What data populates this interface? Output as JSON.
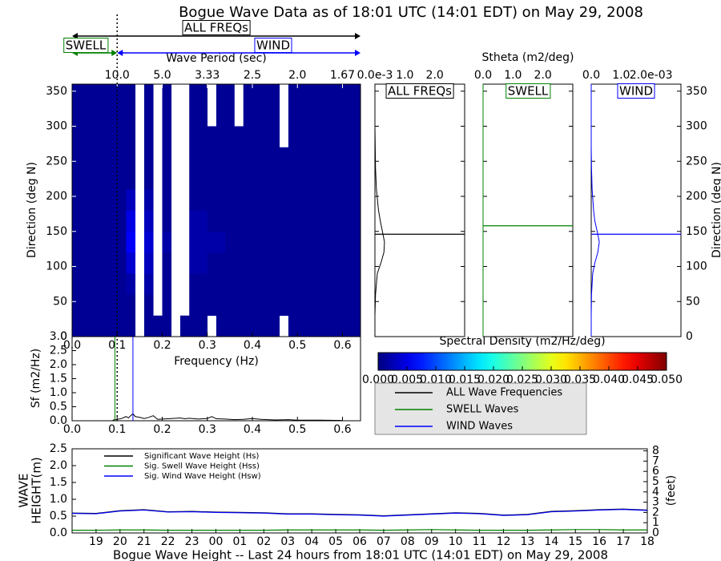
{
  "chart_data": [
    {
      "type": "heatmap",
      "title": "Bogue Wave Data as of 18:01 UTC (14:01 EDT) on May 29, 2008",
      "xlabel": "Frequency (Hz)",
      "ylabel": "Direction (deg N)",
      "x2label": "Wave Period (sec)",
      "annotations": {
        "all": "ALL FREQs",
        "swell": "SWELL",
        "wind": "WIND"
      },
      "xlim": [
        0,
        0.64
      ],
      "ylim": [
        0,
        360
      ],
      "xticks": [
        {
          "value": 0,
          "label": "0.0"
        },
        0.1,
        0.2,
        0.3,
        0.4,
        0.5,
        0.6
      ],
      "yticks": [
        0,
        50,
        100,
        150,
        200,
        250,
        300,
        350
      ],
      "x2ticks": [
        {
          "value": 0.1,
          "label": "10.0"
        },
        {
          "value": 0.2,
          "label": "5.0"
        },
        {
          "value": 0.3,
          "label": "3.33"
        },
        {
          "value": 0.4,
          "label": "2.5"
        },
        {
          "value": 0.5,
          "label": "2.0"
        },
        {
          "value": 0.6,
          "label": "1.67"
        }
      ],
      "freq_bins": [
        0,
        0.02,
        0.04,
        0.06,
        0.08,
        0.1,
        0.12,
        0.14,
        0.16,
        0.18,
        0.2,
        0.22,
        0.24,
        0.26,
        0.28,
        0.3,
        0.32,
        0.34,
        0.36,
        0.38,
        0.4,
        0.42,
        0.44,
        0.46,
        0.48,
        0.5,
        0.52,
        0.54,
        0.56,
        0.58,
        0.6,
        0.62,
        0.64
      ],
      "dir_bins": [
        0,
        30,
        60,
        90,
        120,
        150,
        180,
        210,
        240,
        270,
        300,
        330,
        360
      ],
      "values": [
        [
          0.001,
          0.001,
          0.001,
          0.001,
          0.001,
          0.001,
          0.001,
          null,
          0.001,
          0.001,
          0.001,
          null,
          0.001,
          0.001,
          0.001,
          null,
          0.001,
          0.001,
          0.001,
          0.001,
          0.001,
          0.001,
          0.001,
          null,
          0.001,
          0.001,
          0.001,
          0.001,
          0.001,
          0.001,
          0.001,
          0.001
        ],
        [
          0.001,
          0.001,
          0.001,
          0.001,
          0.001,
          0.001,
          0.001,
          null,
          0.001,
          null,
          0.001,
          null,
          null,
          0.001,
          0.001,
          0.001,
          0.001,
          0.001,
          0.001,
          0.001,
          0.001,
          0.001,
          0.001,
          0.001,
          0.001,
          0.001,
          0.001,
          0.001,
          0.001,
          0.001,
          0.001,
          0.001
        ],
        [
          0.001,
          0.001,
          0.001,
          0.001,
          0.001,
          0.001,
          0.002,
          null,
          0.002,
          null,
          0.001,
          null,
          null,
          0.001,
          0.001,
          0.001,
          0.001,
          0.001,
          0.001,
          0.001,
          0.001,
          0.001,
          0.001,
          0.001,
          0.001,
          0.001,
          0.001,
          0.001,
          0.001,
          0.001,
          0.001,
          0.001
        ],
        [
          0.001,
          0.001,
          0.001,
          0.001,
          0.001,
          0.001,
          0.004,
          null,
          0.003,
          null,
          0.001,
          null,
          null,
          0.002,
          0.002,
          0.001,
          0.001,
          0.001,
          0.001,
          0.001,
          0.001,
          0.001,
          0.001,
          0.001,
          0.001,
          0.001,
          0.001,
          0.001,
          0.001,
          0.001,
          0.001,
          0.001
        ],
        [
          0.001,
          0.001,
          0.001,
          0.001,
          0.001,
          0.001,
          0.006,
          null,
          0.004,
          null,
          0.002,
          null,
          null,
          0.002,
          0.002,
          0.002,
          0.002,
          0.001,
          0.001,
          0.001,
          0.001,
          0.001,
          0.001,
          0.001,
          0.001,
          0.001,
          0.001,
          0.001,
          0.001,
          0.001,
          0.001,
          0.001
        ],
        [
          0.001,
          0.001,
          0.001,
          0.001,
          0.001,
          0.001,
          0.005,
          null,
          0.003,
          null,
          0.001,
          null,
          null,
          0.002,
          0.002,
          0.001,
          0.001,
          0.001,
          0.001,
          0.001,
          0.001,
          0.001,
          0.001,
          0.001,
          0.001,
          0.001,
          0.001,
          0.001,
          0.001,
          0.001,
          0.001,
          0.001
        ],
        [
          0.001,
          0.001,
          0.001,
          0.001,
          0.001,
          0.001,
          0.003,
          null,
          0.002,
          null,
          0.001,
          null,
          null,
          0.001,
          0.001,
          0.001,
          0.001,
          0.001,
          0.001,
          0.001,
          0.001,
          0.001,
          0.001,
          0.001,
          0.001,
          0.001,
          0.001,
          0.001,
          0.001,
          0.001,
          0.001,
          0.001
        ],
        [
          0.001,
          0.001,
          0.001,
          0.001,
          0.001,
          0.001,
          0.001,
          null,
          0.001,
          null,
          0.001,
          null,
          null,
          0.001,
          0.001,
          0.001,
          0.001,
          0.001,
          0.001,
          0.001,
          0.001,
          0.001,
          0.001,
          0.001,
          0.001,
          0.001,
          0.001,
          0.001,
          0.001,
          0.001,
          0.001,
          0.001
        ],
        [
          0.001,
          0.001,
          0.001,
          0.001,
          0.001,
          0.001,
          0.001,
          null,
          0.001,
          null,
          0.001,
          null,
          null,
          0.001,
          0.001,
          0.001,
          0.001,
          0.001,
          0.001,
          0.001,
          0.001,
          0.001,
          0.001,
          0.001,
          0.001,
          0.001,
          0.001,
          0.001,
          0.001,
          0.001,
          0.001,
          0.001
        ],
        [
          0.001,
          0.001,
          0.001,
          0.001,
          0.001,
          0.001,
          0.001,
          null,
          0.001,
          null,
          0.001,
          null,
          null,
          0.001,
          0.001,
          0.001,
          0.001,
          0.001,
          0.001,
          0.001,
          0.001,
          0.001,
          0.001,
          null,
          0.001,
          0.001,
          0.001,
          0.001,
          0.001,
          0.001,
          0.001,
          0.001
        ],
        [
          0.001,
          0.001,
          0.001,
          0.001,
          0.001,
          0.001,
          0.001,
          null,
          0.001,
          null,
          0.001,
          null,
          null,
          0.001,
          0.001,
          null,
          0.001,
          0.001,
          null,
          0.001,
          0.001,
          0.001,
          0.001,
          null,
          0.001,
          0.001,
          0.001,
          0.001,
          0.001,
          0.001,
          0.001,
          0.001
        ],
        [
          0.001,
          0.001,
          0.001,
          0.001,
          0.001,
          0.001,
          0.001,
          null,
          0.001,
          null,
          0.001,
          null,
          null,
          0.001,
          0.001,
          null,
          0.001,
          0.001,
          null,
          0.001,
          0.001,
          0.001,
          0.001,
          null,
          0.001,
          0.001,
          0.001,
          0.001,
          0.001,
          0.001,
          0.001,
          0.001
        ]
      ],
      "colorbar": {
        "label": "Spectral Density (m2/Hz/deg)",
        "lim": [
          0,
          0.05
        ],
        "ticks": [
          {
            "value": 0,
            "label": "0.000"
          },
          {
            "value": 0.005,
            "label": "0.005"
          },
          {
            "value": 0.01,
            "label": "0.010"
          },
          {
            "value": 0.015,
            "label": "0.015"
          },
          {
            "value": 0.02,
            "label": "0.020"
          },
          {
            "value": 0.025,
            "label": "0.025"
          },
          {
            "value": 0.03,
            "label": "0.030"
          },
          {
            "value": 0.035,
            "label": "0.035"
          },
          {
            "value": 0.04,
            "label": "0.040"
          },
          {
            "value": 0.045,
            "label": "0.045"
          },
          {
            "value": 0.05,
            "label": "0.050"
          }
        ]
      }
    },
    {
      "type": "profile",
      "xlabel": "Stheta (m2/deg)",
      "ylabel": "Direction (deg N)",
      "ylim": [
        0,
        360
      ],
      "yticks": [
        0,
        50,
        100,
        150,
        200,
        250,
        300,
        350
      ],
      "directions": [
        0,
        30,
        60,
        90,
        105,
        120,
        135,
        150,
        165,
        180,
        210,
        240,
        270,
        300,
        330,
        360
      ],
      "panels": [
        {
          "name": "ALL FREQs",
          "color": "#000000",
          "xlim": [
            0,
            3.0
          ],
          "xticks": [
            {
              "value": 0,
              "label": "0.0e-3"
            },
            {
              "value": 1,
              "label": "1.0"
            },
            {
              "value": 2,
              "label": "2.0"
            }
          ],
          "values": [
            0,
            0,
            0.02,
            0.08,
            0.2,
            0.3,
            0.32,
            0.25,
            0.18,
            0.12,
            0.05,
            0.02,
            0.01,
            0,
            0,
            0
          ],
          "mean_direction": 146
        },
        {
          "name": "SWELL",
          "color": "#008000",
          "xlim": [
            0,
            3.0
          ],
          "xticks": [
            {
              "value": 0,
              "label": "0.0"
            },
            {
              "value": 1,
              "label": "1.0"
            },
            {
              "value": 2,
              "label": "2.0"
            }
          ],
          "values": [
            0,
            0,
            0,
            0,
            0,
            0,
            0,
            0,
            0,
            0,
            0,
            0,
            0,
            0,
            0,
            0
          ],
          "mean_direction": 158
        },
        {
          "name": "WIND",
          "color": "#0000ff",
          "xlim": [
            0,
            3.0
          ],
          "xticks": [
            {
              "value": 0,
              "label": "0.0"
            },
            {
              "value": 1,
              "label": "1.0"
            },
            {
              "value": 2,
              "label": "2.0e-03"
            }
          ],
          "values": [
            0,
            0,
            0.01,
            0.05,
            0.12,
            0.22,
            0.27,
            0.2,
            0.12,
            0.08,
            0.03,
            0.01,
            0,
            0,
            0,
            0
          ],
          "mean_direction": 146
        }
      ]
    },
    {
      "type": "line",
      "ylabel": "Sf (m2/Hz)",
      "xlim": [
        0,
        0.64
      ],
      "ylim": [
        0,
        3.0
      ],
      "xticks": [
        {
          "value": 0,
          "label": "0.0"
        },
        0.1,
        0.2,
        0.3,
        0.4,
        0.5,
        0.6
      ],
      "yticks": [
        {
          "value": 0,
          "label": "0.0"
        },
        0.5,
        {
          "value": 1,
          "label": "1.0"
        },
        1.5,
        {
          "value": 2,
          "label": "2.0"
        },
        2.5,
        {
          "value": 3,
          "label": "3.0"
        }
      ],
      "separation_frequency": 0.1,
      "x": [
        0.09,
        0.1,
        0.11,
        0.12,
        0.125,
        0.13,
        0.135,
        0.14,
        0.15,
        0.16,
        0.17,
        0.18,
        0.19,
        0.2,
        0.22,
        0.24,
        0.25,
        0.26,
        0.28,
        0.3,
        0.31,
        0.32,
        0.34,
        0.36,
        0.38,
        0.4,
        0.42,
        0.45,
        0.48,
        0.5,
        0.55,
        0.6
      ],
      "series": [
        {
          "name": "ALL Wave Frequencies",
          "color": "#000000",
          "values": [
            0.02,
            0.05,
            0.08,
            0.15,
            0.1,
            0.18,
            0.25,
            0.15,
            0.12,
            0.08,
            0.12,
            0.18,
            0.05,
            0.06,
            0.08,
            0.1,
            0.07,
            0.09,
            0.06,
            0.08,
            0.15,
            0.07,
            0.06,
            0.04,
            0.05,
            0.08,
            0.05,
            0.03,
            0.04,
            0.02,
            0.02,
            0.01
          ]
        },
        {
          "name": "SWELL Waves",
          "color": "#008000",
          "peak_frequency": 0.095
        },
        {
          "name": "WIND Waves",
          "color": "#0000ff",
          "peak_frequency": 0.135
        }
      ]
    },
    {
      "type": "line",
      "title": "Bogue Wave Height -- Last 24 hours from 18:01 UTC (14:01 EDT) on May 29, 2008",
      "ylabel": [
        "WAVE",
        "HEIGHT(m)"
      ],
      "y2label": "(feet)",
      "categories": [
        null,
        "19",
        "20",
        "21",
        "22",
        "23",
        "00",
        "01",
        "02",
        "03",
        "04",
        "05",
        "06",
        "07",
        "08",
        "09",
        "10",
        "11",
        "12",
        "13",
        "14",
        "15",
        "16",
        "17",
        "18"
      ],
      "ylim": [
        0,
        2.5
      ],
      "yticks": [
        {
          "value": 0,
          "label": "0.0"
        },
        0.5,
        {
          "value": 1,
          "label": "1.0"
        },
        1.5,
        {
          "value": 2,
          "label": "2.0"
        },
        2.5
      ],
      "y2lim": [
        0,
        8.2
      ],
      "y2ticks": [
        0,
        1,
        2,
        3,
        4,
        5,
        6,
        7,
        8
      ],
      "series": [
        {
          "name": "Significant Wave Height (Hs)",
          "color": "#000000",
          "values": [
            0.59,
            0.58,
            0.66,
            0.69,
            0.63,
            0.64,
            0.62,
            0.61,
            0.6,
            0.57,
            0.57,
            0.55,
            0.54,
            0.51,
            0.54,
            0.57,
            0.6,
            0.58,
            0.53,
            0.55,
            0.64,
            0.66,
            0.69,
            0.71,
            0.68
          ]
        },
        {
          "name": "Sig. Swell Wave Height (Hss)",
          "color": "#008000",
          "values": [
            0.08,
            0.08,
            0.09,
            0.09,
            0.08,
            0.08,
            0.08,
            0.08,
            0.08,
            0.09,
            0.09,
            0.09,
            0.09,
            0.08,
            0.09,
            0.1,
            0.09,
            0.08,
            0.08,
            0.08,
            0.09,
            0.1,
            0.1,
            0.09,
            0.09
          ]
        },
        {
          "name": "Sig. Wind Wave Height (Hsw)",
          "color": "#0000ff",
          "values": [
            0.58,
            0.57,
            0.65,
            0.68,
            0.62,
            0.63,
            0.61,
            0.6,
            0.59,
            0.56,
            0.56,
            0.54,
            0.53,
            0.5,
            0.53,
            0.56,
            0.59,
            0.57,
            0.52,
            0.54,
            0.63,
            0.65,
            0.68,
            0.7,
            0.67
          ]
        }
      ]
    }
  ]
}
